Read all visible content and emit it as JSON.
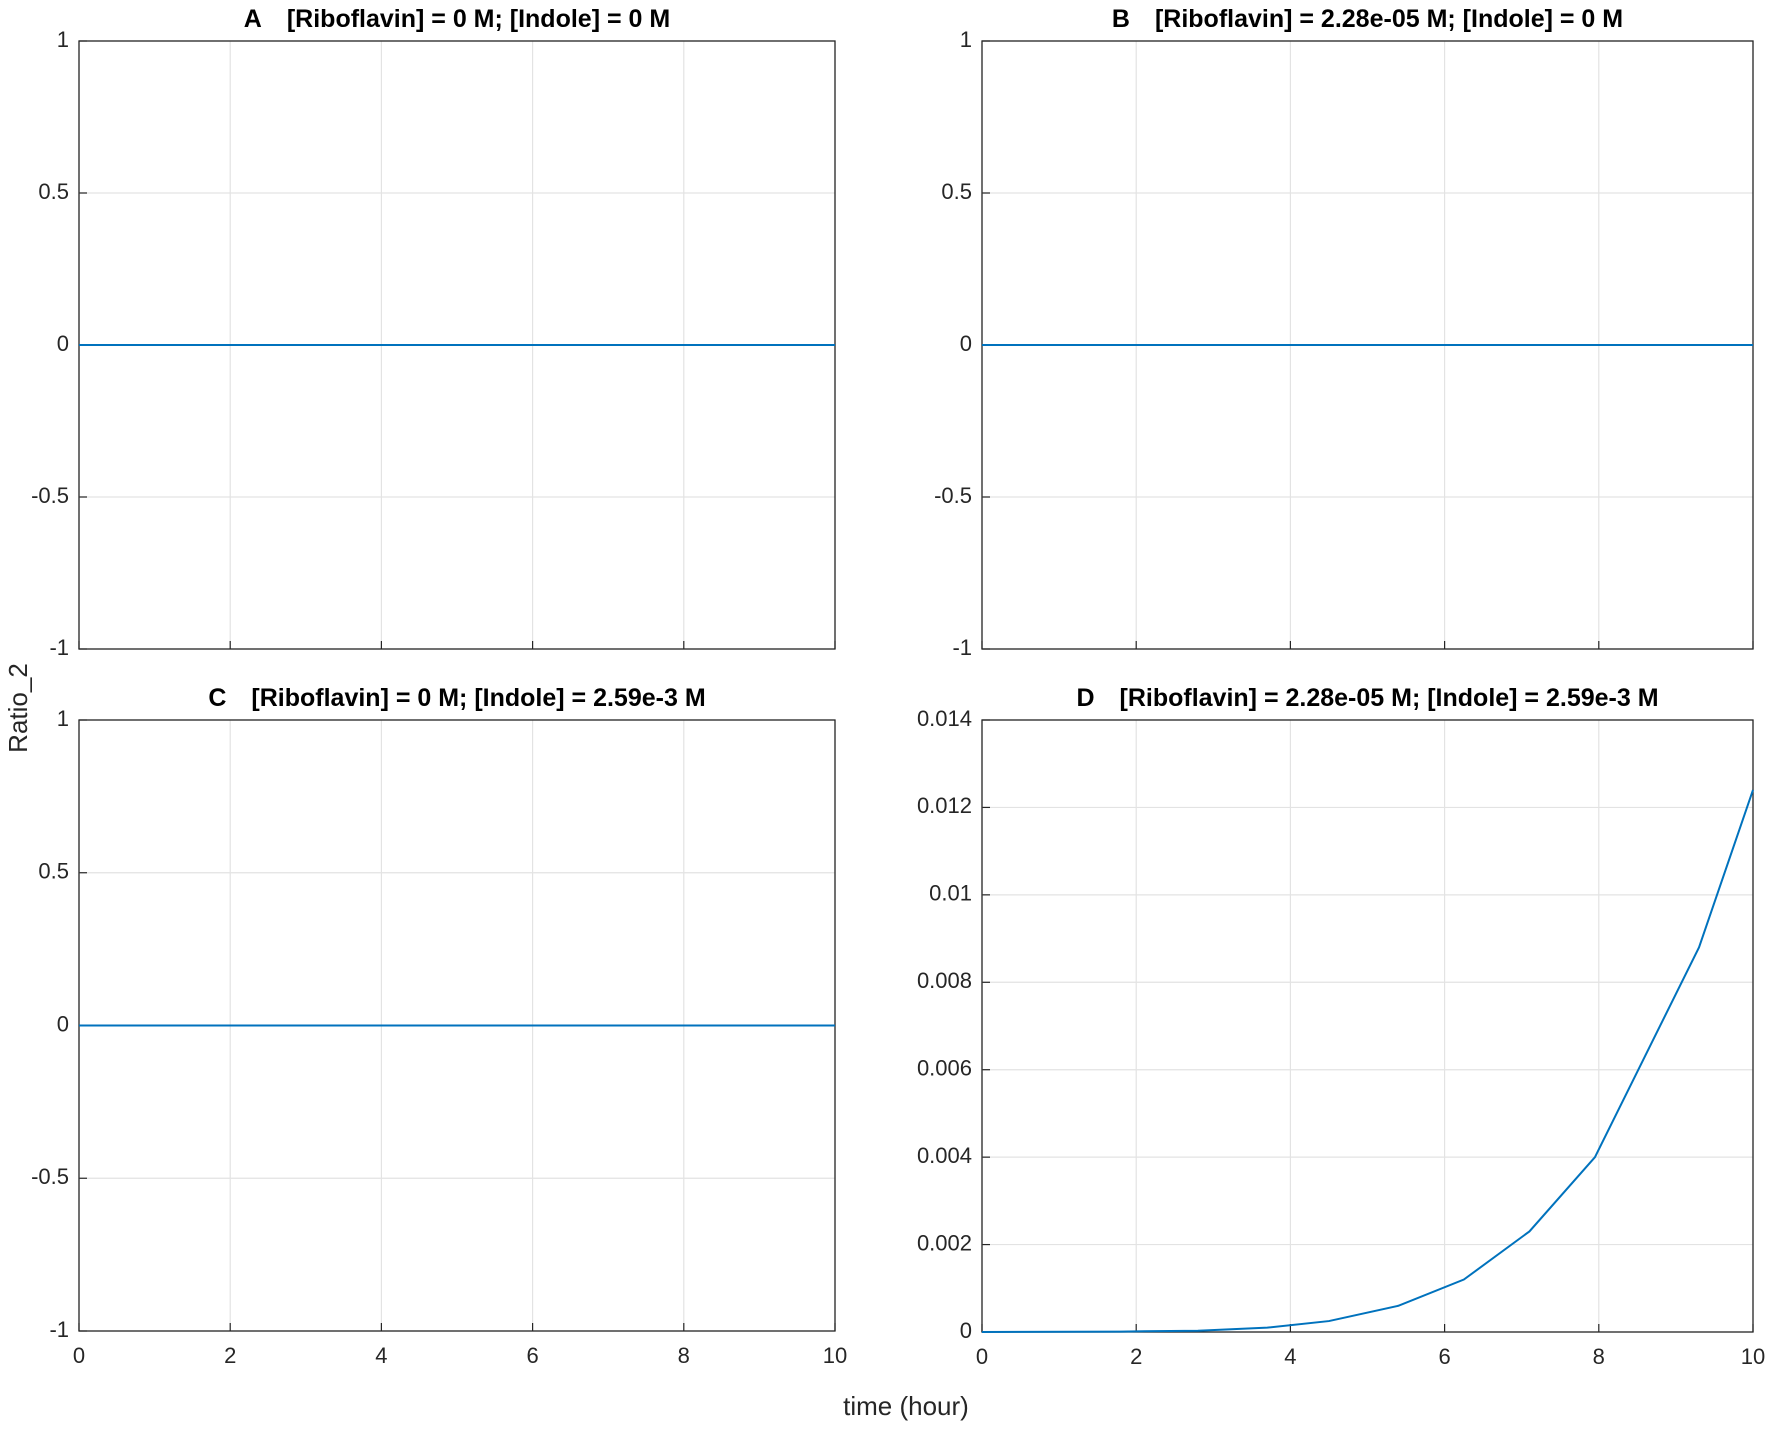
{
  "xlabel": "time (hour)",
  "ylabel": "Ratio_2",
  "chart_data": [
    {
      "type": "line",
      "label": "A",
      "title": "[Riboflavin] = 0 M; [Indole] = 0 M",
      "x": [
        0,
        10
      ],
      "series": [
        {
          "color": "#0072bd",
          "values": [
            0,
            0
          ]
        }
      ],
      "xlim": [
        0,
        10
      ],
      "xticks": [
        0,
        2,
        4,
        6,
        8,
        10
      ],
      "show_xtick_labels": false,
      "ylim": [
        -1,
        1
      ],
      "yticks": [
        -1,
        -0.5,
        0,
        0.5,
        1
      ],
      "grid": true
    },
    {
      "type": "line",
      "label": "B",
      "title": "[Riboflavin] = 2.28e-05 M; [Indole] = 0 M",
      "x": [
        0,
        10
      ],
      "series": [
        {
          "color": "#0072bd",
          "values": [
            0,
            0
          ]
        }
      ],
      "xlim": [
        0,
        10
      ],
      "xticks": [
        0,
        2,
        4,
        6,
        8,
        10
      ],
      "show_xtick_labels": false,
      "ylim": [
        -1,
        1
      ],
      "yticks": [
        -1,
        -0.5,
        0,
        0.5,
        1
      ],
      "grid": true
    },
    {
      "type": "line",
      "label": "C",
      "title": "[Riboflavin] = 0 M; [Indole] = 2.59e-3 M",
      "x": [
        0,
        10
      ],
      "series": [
        {
          "color": "#0072bd",
          "values": [
            0,
            0
          ]
        }
      ],
      "xlim": [
        0,
        10
      ],
      "xticks": [
        0,
        2,
        4,
        6,
        8,
        10
      ],
      "show_xtick_labels": true,
      "ylim": [
        -1,
        1
      ],
      "yticks": [
        -1,
        -0.5,
        0,
        0.5,
        1
      ],
      "grid": true
    },
    {
      "type": "line",
      "label": "D",
      "title": "[Riboflavin] = 2.28e-05 M; [Indole] = 2.59e-3 M",
      "x": [
        0,
        1.8,
        2.8,
        3.7,
        4.5,
        5.4,
        6.25,
        7.1,
        7.95,
        9.3,
        10
      ],
      "series": [
        {
          "color": "#0072bd",
          "values": [
            0,
            1e-05,
            3e-05,
            0.0001,
            0.00025,
            0.0006,
            0.0012,
            0.0023,
            0.004,
            0.0088,
            0.0124
          ]
        }
      ],
      "xlim": [
        0,
        10
      ],
      "xticks": [
        0,
        2,
        4,
        6,
        8,
        10
      ],
      "show_xtick_labels": true,
      "ylim": [
        0,
        0.014
      ],
      "yticks": [
        0,
        0.002,
        0.004,
        0.006,
        0.008,
        0.01,
        0.012,
        0.014
      ],
      "grid": true
    }
  ]
}
